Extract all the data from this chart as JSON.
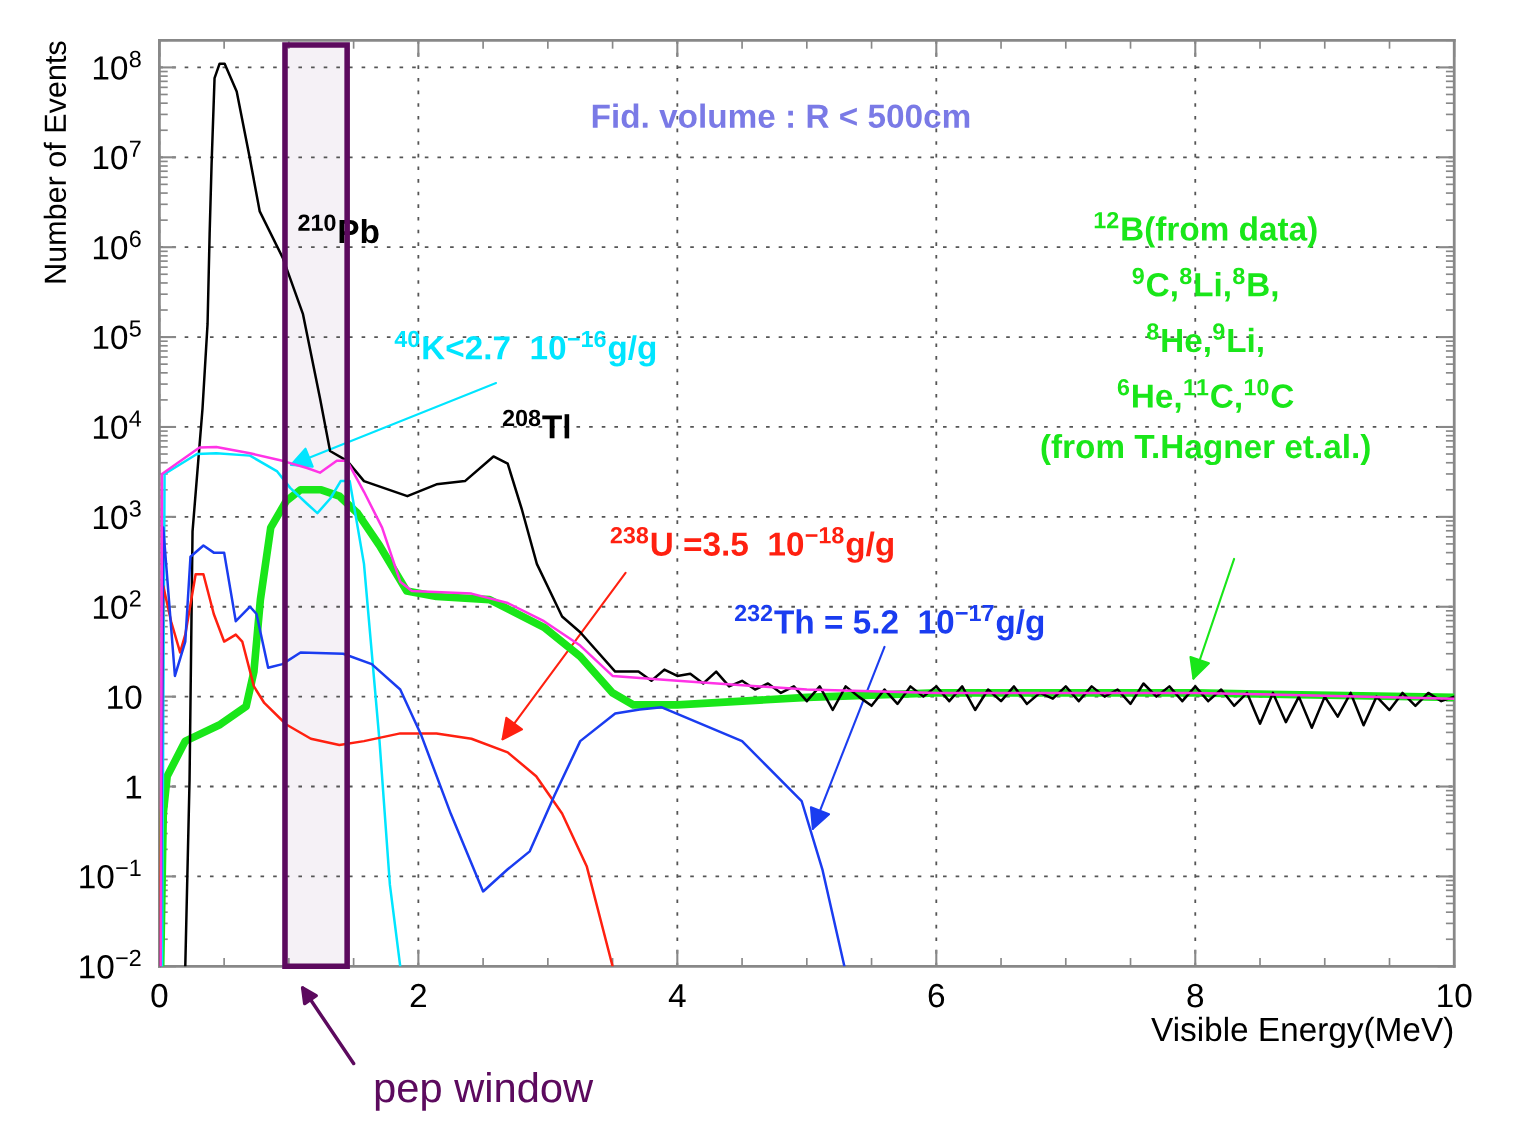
{
  "chart_data": {
    "type": "line",
    "xlabel": "Visible Energy(MeV)",
    "ylabel": "Number of Events",
    "log": "y",
    "xlim": [
      0,
      10
    ],
    "ylim": [
      0.01,
      200000000
    ],
    "xticks": [
      0,
      2,
      4,
      6,
      8,
      10
    ],
    "yticks": [
      {
        "value": 0.01,
        "label": "10$^{−2}$"
      },
      {
        "value": 0.1,
        "label": "10$^{−1}$"
      },
      1,
      10,
      {
        "value": 100,
        "label": "10$^{2}$"
      },
      {
        "value": 1000,
        "label": "10$^{3}$"
      },
      {
        "value": 10000,
        "label": "10$^{4}$"
      },
      {
        "value": 100000,
        "label": "10$^{5}$"
      },
      {
        "value": 1000000,
        "label": "10$^{6}$"
      },
      {
        "value": 10000000,
        "label": "10$^{7}$"
      },
      {
        "value": 100000000,
        "label": "10$^{8}$"
      }
    ],
    "grid": true,
    "legend": false,
    "bands": [
      {
        "axis": "x",
        "from": 0.97,
        "to": 1.45,
        "label": "pep window",
        "color": "#5c0a5e"
      }
    ],
    "annotations": [
      "Fid. volume : R < 500cm",
      {
        "text": "$^{210}$Pb",
        "x": 1.0,
        "y": 700000
      },
      {
        "text": "$^{208}$Tl",
        "x": 2.58,
        "y": 4700
      }
    ],
    "series": [
      {
        "color": "#000000",
        "x": [
          0.2,
          0.233,
          0.256,
          0.333,
          0.372,
          0.388,
          0.403,
          0.426,
          0.465,
          0.504,
          0.597,
          0.698,
          0.775,
          0.953,
          1.109,
          1.24,
          1.318,
          1.45,
          1.58,
          1.915,
          2.14,
          2.36,
          2.58,
          2.69,
          2.8,
          2.915,
          3.11,
          3.25,
          3.52,
          3.7,
          3.8,
          3.9,
          4.0,
          4.1,
          4.2,
          4.3,
          4.4,
          4.5,
          4.6,
          4.7,
          4.8,
          4.9,
          5.0,
          5.1,
          5.2,
          5.3,
          5.4,
          5.5,
          5.6,
          5.7,
          5.8,
          5.9,
          6.0,
          6.1,
          6.2,
          6.3,
          6.4,
          6.5,
          6.6,
          6.7,
          6.8,
          6.9,
          7.0,
          7.1,
          7.2,
          7.3,
          7.4,
          7.5,
          7.6,
          7.7,
          7.8,
          7.9,
          8.0,
          8.1,
          8.2,
          8.3,
          8.4,
          8.5,
          8.6,
          8.7,
          8.8,
          8.9,
          9.0,
          9.1,
          9.2,
          9.3,
          9.4,
          9.5,
          9.6,
          9.7,
          9.8,
          9.9,
          10.0
        ],
        "values": [
          0.01,
          1.2,
          690,
          16000,
          140000,
          1400000,
          8300000,
          76000000,
          110000000,
          110000000,
          54000000,
          9800000,
          2500000,
          760000,
          180000,
          21000,
          5400,
          4200,
          2500,
          1700,
          2300,
          2500,
          4700,
          3900,
          1200,
          300,
          78,
          52,
          19,
          19,
          15,
          20,
          17,
          18,
          14,
          19,
          13,
          15,
          12,
          14,
          11,
          13,
          8.9,
          13,
          7.1,
          13,
          10,
          7.9,
          12,
          8.3,
          13,
          10,
          13,
          8.9,
          13,
          7.1,
          12,
          8.9,
          13,
          8.3,
          11,
          9.5,
          13,
          8.9,
          13,
          10,
          12,
          8.3,
          14,
          10,
          13,
          8.9,
          13,
          8.9,
          12,
          7.9,
          11,
          5,
          11,
          5.2,
          10,
          4.5,
          10,
          6,
          11,
          4.8,
          10,
          7.1,
          11,
          7.9,
          11,
          8.9,
          10
        ]
      },
      {
        "name": "$^{40}$K<2.7  10$^{−16}$g/g",
        "color": "#00e5ff",
        "x": [
          0.02,
          0.04,
          0.29,
          0.44,
          0.7,
          0.91,
          1.01,
          1.14,
          1.22,
          1.32,
          1.4,
          1.47,
          1.58,
          1.7,
          1.78,
          1.86
        ],
        "values": [
          0.01,
          3000,
          5000,
          5100,
          4800,
          3200,
          2100,
          1400,
          1100,
          1600,
          2500,
          2500,
          300,
          3.2,
          0.081,
          0.01
        ]
      },
      {
        "name": "$^{238}$U =3.5  10$^{−18}$g/g",
        "color": "#ff2010",
        "x": [
          0.0,
          0.03,
          0.09,
          0.16,
          0.2,
          0.28,
          0.34,
          0.42,
          0.5,
          0.59,
          0.64,
          0.73,
          0.81,
          0.98,
          1.17,
          1.39,
          1.58,
          1.86,
          2.14,
          2.41,
          2.69,
          2.91,
          3.11,
          3.3,
          3.5
        ],
        "values": [
          0.01,
          170,
          69,
          31,
          49,
          230,
          230,
          83,
          41,
          49,
          41,
          13,
          8.5,
          4.9,
          3.4,
          2.9,
          3.2,
          3.9,
          3.9,
          3.4,
          2.4,
          1.3,
          0.5,
          0.13,
          0.01
        ]
      },
      {
        "name": "$^{232}$Th = 5.2  10$^{−17}$g/g",
        "color": "#1a3cf0",
        "x": [
          0.01,
          0.03,
          0.12,
          0.2,
          0.24,
          0.34,
          0.42,
          0.5,
          0.59,
          0.7,
          0.75,
          0.84,
          0.95,
          1.09,
          1.42,
          1.64,
          1.86,
          2.02,
          2.25,
          2.5,
          2.69,
          2.86,
          3.05,
          3.25,
          3.52,
          3.71,
          3.88,
          4.5,
          4.96,
          5.12,
          5.29
        ],
        "values": [
          0.01,
          760,
          17,
          41,
          360,
          480,
          400,
          400,
          69,
          100,
          83,
          21,
          23,
          31,
          30,
          23,
          12,
          3.8,
          0.5,
          0.068,
          0.12,
          0.19,
          0.79,
          3.2,
          6.5,
          7.2,
          7.6,
          3.2,
          0.69,
          0.12,
          0.01
        ]
      },
      {
        "name": "$^{12}$B(from data)\n$^{9}$C,$^{8}$Li,$^{8}$B,\n$^{8}$He,$^{9}$Li,\n$^{6}$He,$^{11}$C,$^{10}$C\n(from T.Hagner et.al.)",
        "color": "#19e619",
        "x": [
          0.01,
          0.03,
          0.06,
          0.2,
          0.47,
          0.67,
          0.73,
          0.78,
          0.86,
          0.98,
          1.09,
          1.25,
          1.39,
          1.53,
          1.7,
          1.91,
          2.14,
          2.55,
          2.97,
          3.25,
          3.5,
          3.66,
          4.0,
          5.0,
          6.0,
          8.0,
          10.0
        ],
        "values": [
          0.01,
          0.5,
          1.3,
          3.2,
          4.9,
          7.8,
          19,
          120,
          760,
          1500,
          2000,
          2000,
          1700,
          1100,
          480,
          150,
          130,
          120,
          59,
          28,
          11,
          8.1,
          8.1,
          9.8,
          11,
          11,
          9.8
        ]
      },
      {
        "color": "#ff33e6",
        "x": [
          0.01,
          0.02,
          0.31,
          0.44,
          0.7,
          0.95,
          1.14,
          1.24,
          1.37,
          1.45,
          1.58,
          1.72,
          1.86,
          1.95,
          2.41,
          2.69,
          2.97,
          3.25,
          3.5,
          4.0,
          5.0,
          6.0,
          8.0,
          10.0
        ],
        "values": [
          0.01,
          3000,
          5900,
          6000,
          5100,
          4200,
          3500,
          3100,
          4200,
          4200,
          1900,
          760,
          190,
          150,
          140,
          110,
          69,
          37,
          17,
          15,
          12,
          11,
          11,
          9.5
        ]
      }
    ]
  }
}
